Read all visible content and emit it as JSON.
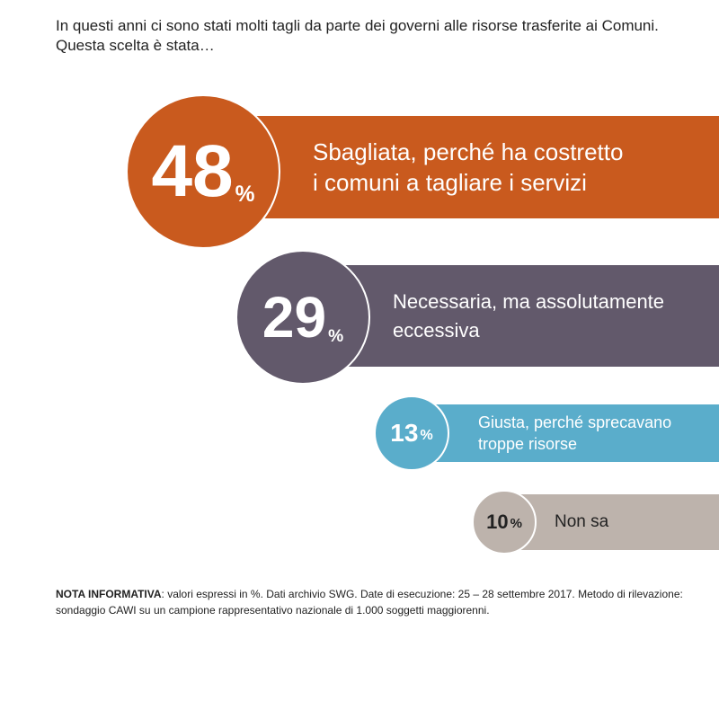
{
  "question": "In questi anni ci sono stati molti tagli da parte dei governi alle risorse trasferite ai Comuni. Questa scelta è stata…",
  "chart_data": {
    "type": "bar",
    "unit": "%",
    "items": [
      {
        "value": 48,
        "value_label": "48",
        "unit": "%",
        "label_line1": "Sbagliata, perché ha costretto",
        "label_line2": "i comuni a tagliare i servizi",
        "color": "#C95A1E",
        "text_color": "#ffffff"
      },
      {
        "value": 29,
        "value_label": "29",
        "unit": "%",
        "label_line1": "Necessaria, ma assolutamente",
        "label_line2": "eccessiva",
        "color": "#62596B",
        "text_color": "#ffffff"
      },
      {
        "value": 13,
        "value_label": "13",
        "unit": "%",
        "label_line1": "Giusta, perché sprecavano",
        "label_line2": "troppe risorse",
        "color": "#5AADCB",
        "text_color": "#ffffff"
      },
      {
        "value": 10,
        "value_label": "10",
        "unit": "%",
        "label_line1": "Non sa",
        "label_line2": "",
        "color": "#BDB3AC",
        "text_color": "#222222"
      }
    ]
  },
  "note": {
    "title": "NOTA INFORMATIVA",
    "text": ": valori espressi in %. Dati archivio SWG. Date di esecuzione: 25 – 28 settembre 2017. Metodo di rilevazione: sondaggio CAWI su un campione rappresentativo nazionale di 1.000 soggetti maggiorenni."
  }
}
